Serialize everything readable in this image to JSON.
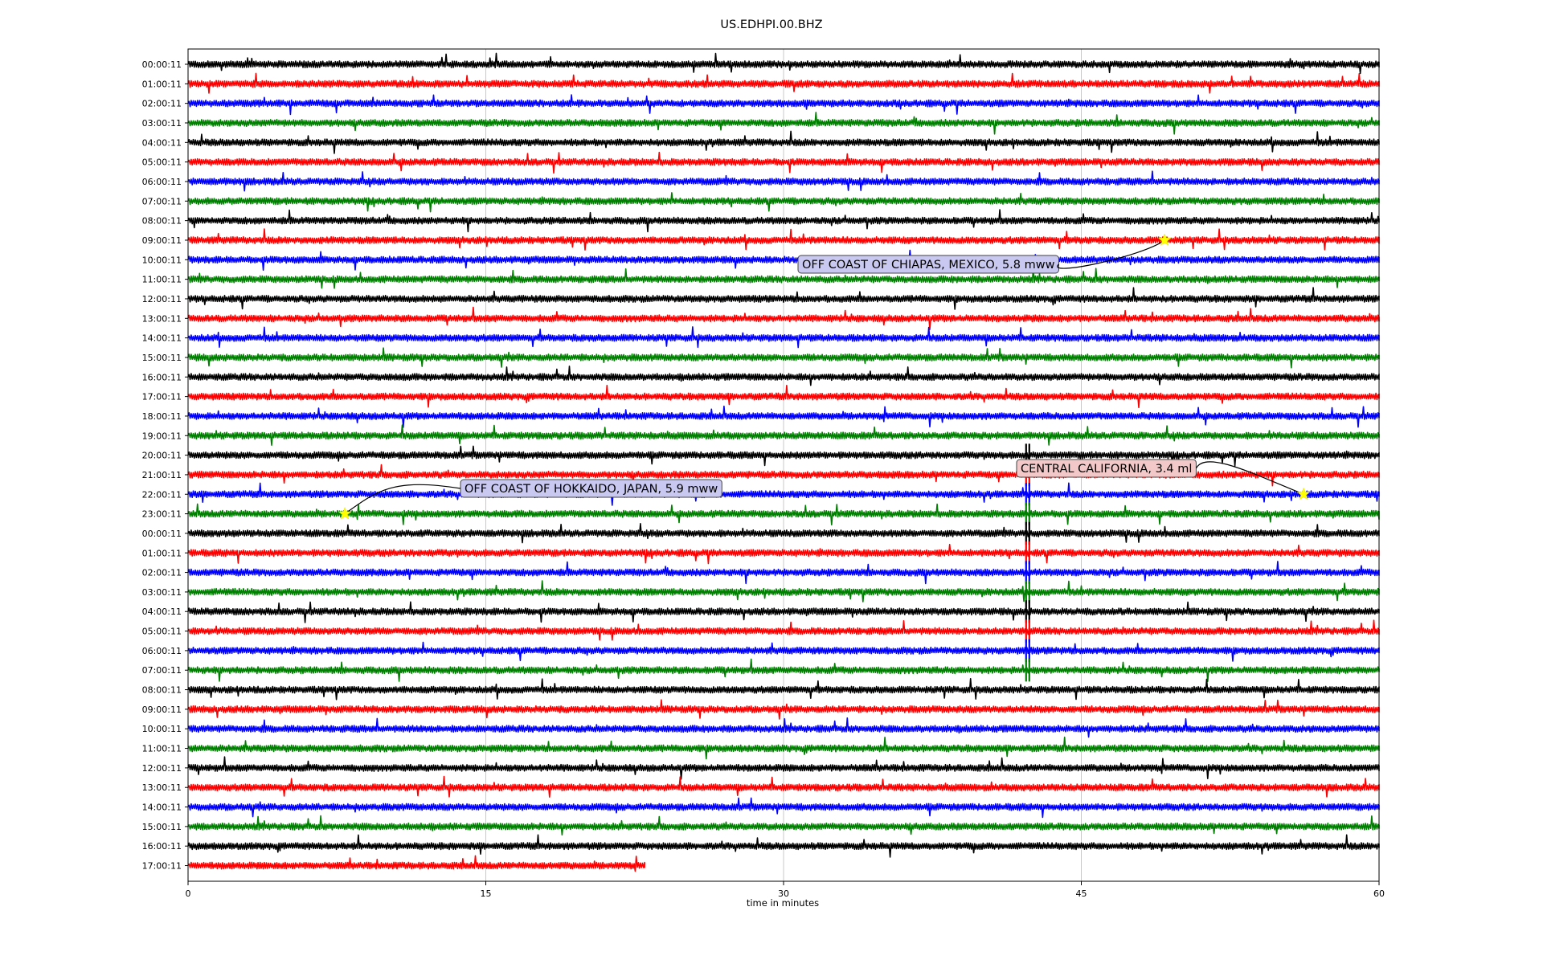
{
  "chart_data": {
    "type": "line",
    "title": "US.EDHPI.00.BHZ",
    "xlabel": "time in minutes",
    "ylabel": "",
    "xlim": [
      0,
      60
    ],
    "x_ticks": [
      "0",
      "15",
      "30",
      "45",
      "60"
    ],
    "grid": "vertical lines at 15, 30, 45",
    "colors": [
      "#000000",
      "#ff0000",
      "#0000ff",
      "#008000"
    ],
    "line_labels": [
      "00:00:11",
      "01:00:11",
      "02:00:11",
      "03:00:11",
      "04:00:11",
      "05:00:11",
      "06:00:11",
      "07:00:11",
      "08:00:11",
      "09:00:11",
      "10:00:11",
      "11:00:11",
      "12:00:11",
      "13:00:11",
      "14:00:11",
      "15:00:11",
      "16:00:11",
      "17:00:11",
      "18:00:11",
      "19:00:11",
      "20:00:11",
      "21:00:11",
      "22:00:11",
      "23:00:11",
      "00:00:11",
      "01:00:11",
      "02:00:11",
      "03:00:11",
      "04:00:11",
      "05:00:11",
      "06:00:11",
      "07:00:11",
      "08:00:11",
      "09:00:11",
      "10:00:11",
      "11:00:11",
      "12:00:11",
      "13:00:11",
      "14:00:11",
      "15:00:11",
      "16:00:11",
      "17:00:11"
    ],
    "last_line_end_minute": 23,
    "events": [
      {
        "label": "OFF COAST OF CHIAPAS, MEXICO, 5.8 mww",
        "line": 9,
        "minute": 49.2,
        "box_color": "#c8c8f0"
      },
      {
        "label": "CENTRAL CALIFORNIA, 3.4 ml",
        "line": 22,
        "minute": 56.2,
        "box_color": "#f2c8c8"
      },
      {
        "label": "OFF COAST OF HOKKAIDO, JAPAN, 5.9 mww",
        "line": 23,
        "minute": 7.9,
        "box_color": "#c8c8f0"
      }
    ],
    "large_signal": {
      "start_line": 20,
      "end_line": 31,
      "minute": 42.3
    }
  }
}
